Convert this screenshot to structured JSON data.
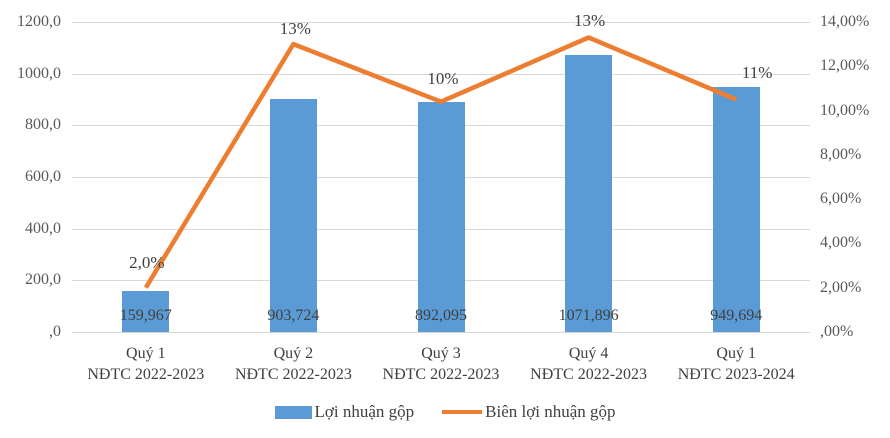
{
  "chart_data": {
    "type": "bar",
    "subtype": "combo-bar-line-dual-axis",
    "title": "",
    "categories": [
      {
        "line1": "Quý 1",
        "line2": "NĐTC 2022-2023"
      },
      {
        "line1": "Quý 2",
        "line2": "NĐTC 2022-2023"
      },
      {
        "line1": "Quý 3",
        "line2": "NĐTC 2022-2023"
      },
      {
        "line1": "Quý 4",
        "line2": "NĐTC 2022-2023"
      },
      {
        "line1": "Quý 1",
        "line2": "NĐTC 2023-2024"
      }
    ],
    "series": [
      {
        "name": "Lợi nhuận gộp",
        "type": "bar",
        "axis": "left",
        "color": "#5B9BD5",
        "values": [
          159.967,
          903.724,
          892.095,
          1071.896,
          949.694
        ],
        "labels": [
          "159,967",
          "903,724",
          "892,095",
          "1071,896",
          "949,694"
        ]
      },
      {
        "name": "Biên lợi nhuận gộp",
        "type": "line",
        "axis": "right",
        "color": "#ED7D31",
        "values": [
          2.0,
          13.0,
          10.4,
          13.3,
          10.5
        ],
        "labels": [
          "2,0%",
          "13%",
          "10%",
          "13%",
          "11%"
        ],
        "label_offsets": [
          [
            1,
            -25
          ],
          [
            2,
            -15
          ],
          [
            2,
            -23
          ],
          [
            1,
            -17
          ],
          [
            21,
            -27
          ]
        ]
      }
    ],
    "left_axis": {
      "min": 0,
      "max": 1200,
      "step": 200,
      "tick_labels": [
        "1200,0",
        "1000,0",
        "800,0",
        "600,0",
        "400,0",
        "200,0",
        ",0"
      ]
    },
    "right_axis": {
      "min": 0,
      "max": 14,
      "step": 2,
      "tick_labels": [
        "14,00%",
        "12,00%",
        "10,00%",
        "8,00%",
        "6,00%",
        "4,00%",
        "2,00%",
        ",00%"
      ]
    },
    "grid": true,
    "legend_position": "bottom",
    "colors": {
      "bar": "#5B9BD5",
      "line": "#ED7D31",
      "gridline": "#D9D9D9",
      "axis_text": "#595959",
      "label_text": "#404040",
      "background": "#FFFFFF"
    }
  }
}
